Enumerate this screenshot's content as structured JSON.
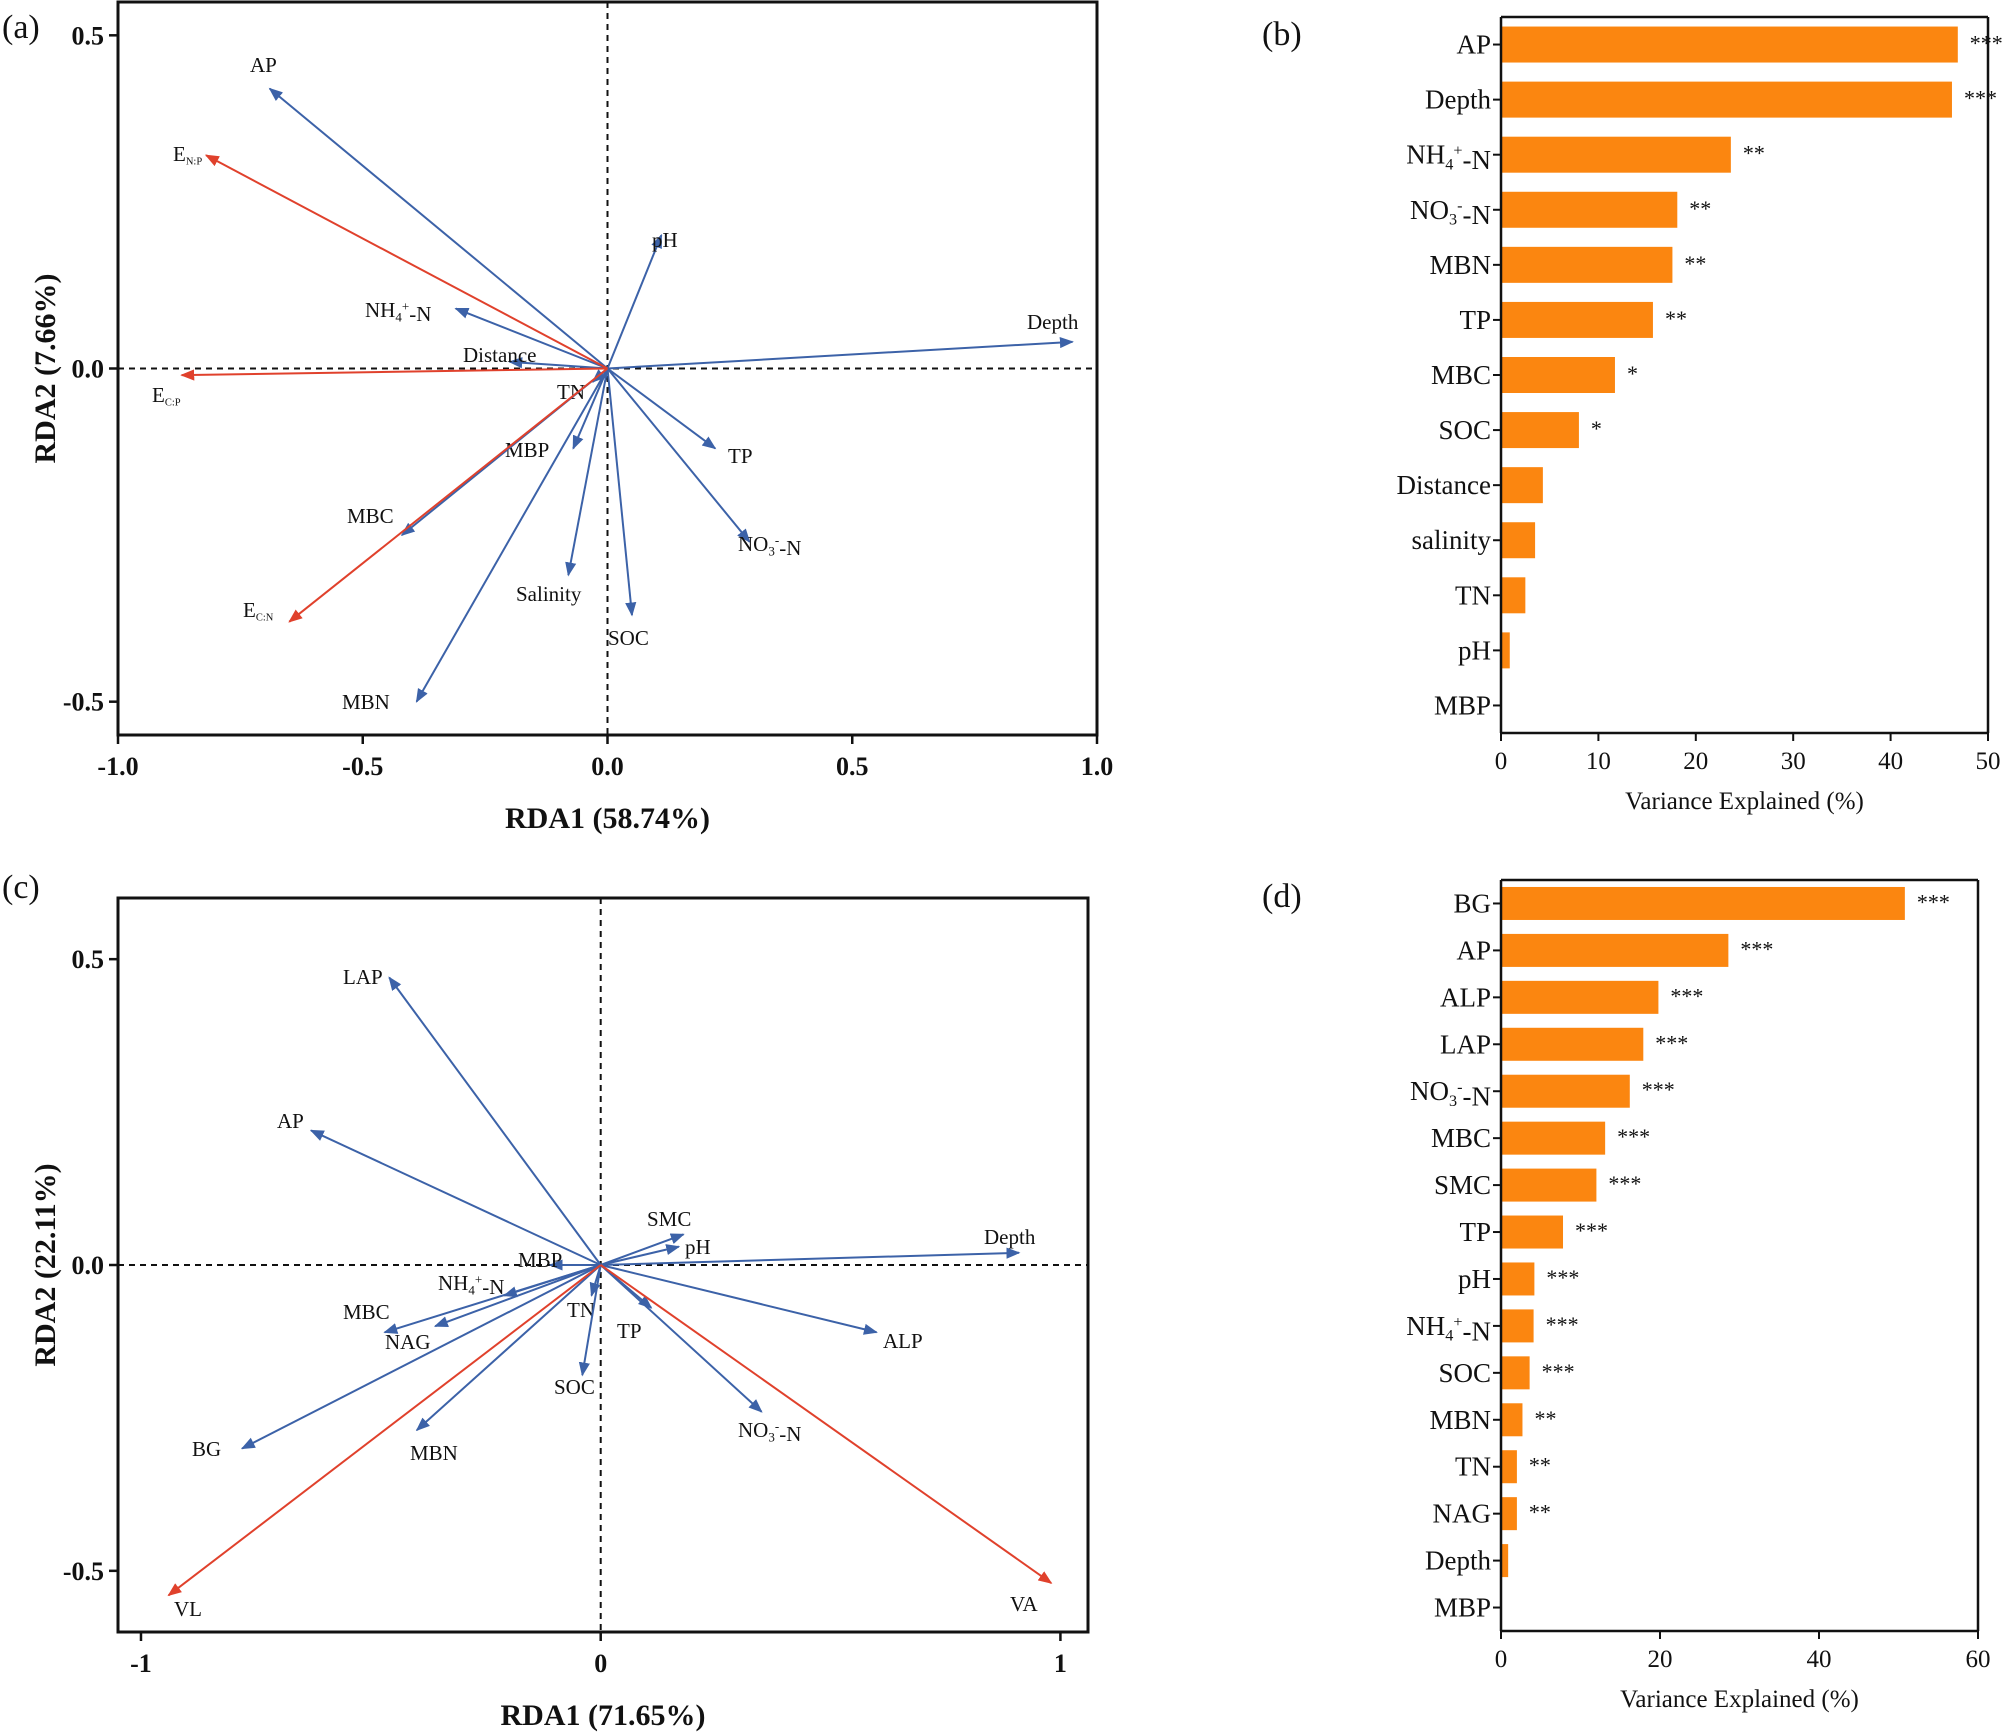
{
  "panel_labels": [
    "(a)",
    "(b)",
    "(c)",
    "(d)"
  ],
  "chart_data": [
    {
      "panel": "(a)",
      "type": "scatter",
      "subtype": "rda-biplot",
      "xlabel": "RDA1 (58.74%)",
      "ylabel": "RDA2 (7.66%)",
      "xlim": [
        -1.0,
        1.0
      ],
      "ylim": [
        -0.55,
        0.55
      ],
      "xticks": [
        "-1.0",
        "-0.5",
        "0.0",
        "0.5",
        "1.0"
      ],
      "yticks": [
        "-0.5",
        "0.0",
        "0.5"
      ],
      "colors": {
        "response": "#e0412c",
        "explanatory": "#3c62a8"
      },
      "vectors": [
        {
          "label": "AP",
          "x": -0.69,
          "y": 0.42,
          "group": "explanatory"
        },
        {
          "label": "pH",
          "x": 0.11,
          "y": 0.2,
          "group": "explanatory"
        },
        {
          "label": "NH4+-N",
          "x": -0.31,
          "y": 0.09,
          "group": "explanatory"
        },
        {
          "label": "Distance",
          "x": -0.2,
          "y": 0.01,
          "group": "explanatory"
        },
        {
          "label": "Depth",
          "x": 0.95,
          "y": 0.04,
          "group": "explanatory"
        },
        {
          "label": "TN",
          "x": -0.03,
          "y": -0.02,
          "group": "explanatory"
        },
        {
          "label": "TP",
          "x": 0.22,
          "y": -0.12,
          "group": "explanatory"
        },
        {
          "label": "NO3--N",
          "x": 0.29,
          "y": -0.26,
          "group": "explanatory"
        },
        {
          "label": "MBP",
          "x": -0.07,
          "y": -0.12,
          "group": "explanatory"
        },
        {
          "label": "MBC",
          "x": -0.42,
          "y": -0.25,
          "group": "explanatory"
        },
        {
          "label": "Salinity",
          "x": -0.08,
          "y": -0.31,
          "group": "explanatory"
        },
        {
          "label": "SOC",
          "x": 0.05,
          "y": -0.37,
          "group": "explanatory"
        },
        {
          "label": "MBN",
          "x": -0.39,
          "y": -0.5,
          "group": "explanatory"
        },
        {
          "label": "EN:P",
          "x": -0.82,
          "y": 0.32,
          "group": "response"
        },
        {
          "label": "EC:P",
          "x": -0.87,
          "y": -0.01,
          "group": "response"
        },
        {
          "label": "EC:N",
          "x": -0.65,
          "y": -0.38,
          "group": "response"
        }
      ]
    },
    {
      "panel": "(b)",
      "type": "bar",
      "orientation": "horizontal",
      "xlabel": "Variance Explained (%)",
      "xlim": [
        0,
        50
      ],
      "xticks": [
        "0",
        "10",
        "20",
        "30",
        "40",
        "50"
      ],
      "bar_color": "#fb8610",
      "categories": [
        "AP",
        "Depth",
        "NH4+-N",
        "NO3--N",
        "MBN",
        "TP",
        "MBC",
        "SOC",
        "Distance",
        "salinity",
        "TN",
        "pH",
        "MBP"
      ],
      "values": [
        46.9,
        46.3,
        23.6,
        18.1,
        17.6,
        15.6,
        11.7,
        8.0,
        4.3,
        3.5,
        2.5,
        0.9,
        0.0
      ],
      "significance": [
        "***",
        "***",
        "**",
        "**",
        "**",
        "**",
        "*",
        "*",
        "",
        "",
        "",
        "",
        ""
      ]
    },
    {
      "panel": "(c)",
      "type": "scatter",
      "subtype": "rda-biplot",
      "xlabel": "RDA1 (71.65%)",
      "ylabel": "RDA2 (22.11%)",
      "xlim": [
        -1.05,
        1.06
      ],
      "ylim": [
        -0.6,
        0.6
      ],
      "xticks": [
        "-1",
        "0",
        "1"
      ],
      "yticks": [
        "-0.5",
        "0.0",
        "0.5"
      ],
      "colors": {
        "response": "#e0412c",
        "explanatory": "#3c62a8"
      },
      "vectors": [
        {
          "label": "LAP",
          "x": -0.46,
          "y": 0.47,
          "group": "explanatory"
        },
        {
          "label": "AP",
          "x": -0.63,
          "y": 0.22,
          "group": "explanatory"
        },
        {
          "label": "SMC",
          "x": 0.18,
          "y": 0.05,
          "group": "explanatory"
        },
        {
          "label": "pH",
          "x": 0.17,
          "y": 0.03,
          "group": "explanatory"
        },
        {
          "label": "Depth",
          "x": 0.91,
          "y": 0.02,
          "group": "explanatory"
        },
        {
          "label": "MBP",
          "x": -0.11,
          "y": 0.0,
          "group": "explanatory"
        },
        {
          "label": "NH4+-N",
          "x": -0.21,
          "y": -0.05,
          "group": "explanatory"
        },
        {
          "label": "MBC",
          "x": -0.47,
          "y": -0.11,
          "group": "explanatory"
        },
        {
          "label": "NAG",
          "x": -0.36,
          "y": -0.1,
          "group": "explanatory"
        },
        {
          "label": "TN",
          "x": -0.02,
          "y": -0.05,
          "group": "explanatory"
        },
        {
          "label": "TP",
          "x": 0.11,
          "y": -0.07,
          "group": "explanatory"
        },
        {
          "label": "ALP",
          "x": 0.6,
          "y": -0.11,
          "group": "explanatory"
        },
        {
          "label": "SOC",
          "x": -0.04,
          "y": -0.18,
          "group": "explanatory"
        },
        {
          "label": "NO3--N",
          "x": 0.35,
          "y": -0.24,
          "group": "explanatory"
        },
        {
          "label": "MBN",
          "x": -0.4,
          "y": -0.27,
          "group": "explanatory"
        },
        {
          "label": "BG",
          "x": -0.78,
          "y": -0.3,
          "group": "explanatory"
        },
        {
          "label": "VL",
          "x": -0.94,
          "y": -0.54,
          "group": "response"
        },
        {
          "label": "VA",
          "x": 0.98,
          "y": -0.52,
          "group": "response"
        }
      ]
    },
    {
      "panel": "(d)",
      "type": "bar",
      "orientation": "horizontal",
      "xlabel": "Variance Explained (%)",
      "xlim": [
        0,
        60
      ],
      "xticks": [
        "0",
        "20",
        "40",
        "60"
      ],
      "bar_color": "#fb8610",
      "categories": [
        "BG",
        "AP",
        "ALP",
        "LAP",
        "NO3--N",
        "MBC",
        "SMC",
        "TP",
        "pH",
        "NH4+-N",
        "SOC",
        "MBN",
        "TN",
        "NAG",
        "Depth",
        "MBP"
      ],
      "values": [
        50.8,
        28.6,
        19.8,
        17.9,
        16.2,
        13.1,
        12.0,
        7.8,
        4.2,
        4.1,
        3.6,
        2.7,
        2.0,
        2.0,
        0.9,
        0.0
      ],
      "significance": [
        "***",
        "***",
        "***",
        "***",
        "***",
        "***",
        "***",
        "***",
        "***",
        "***",
        "***",
        "**",
        "**",
        "**",
        "",
        ""
      ]
    }
  ]
}
